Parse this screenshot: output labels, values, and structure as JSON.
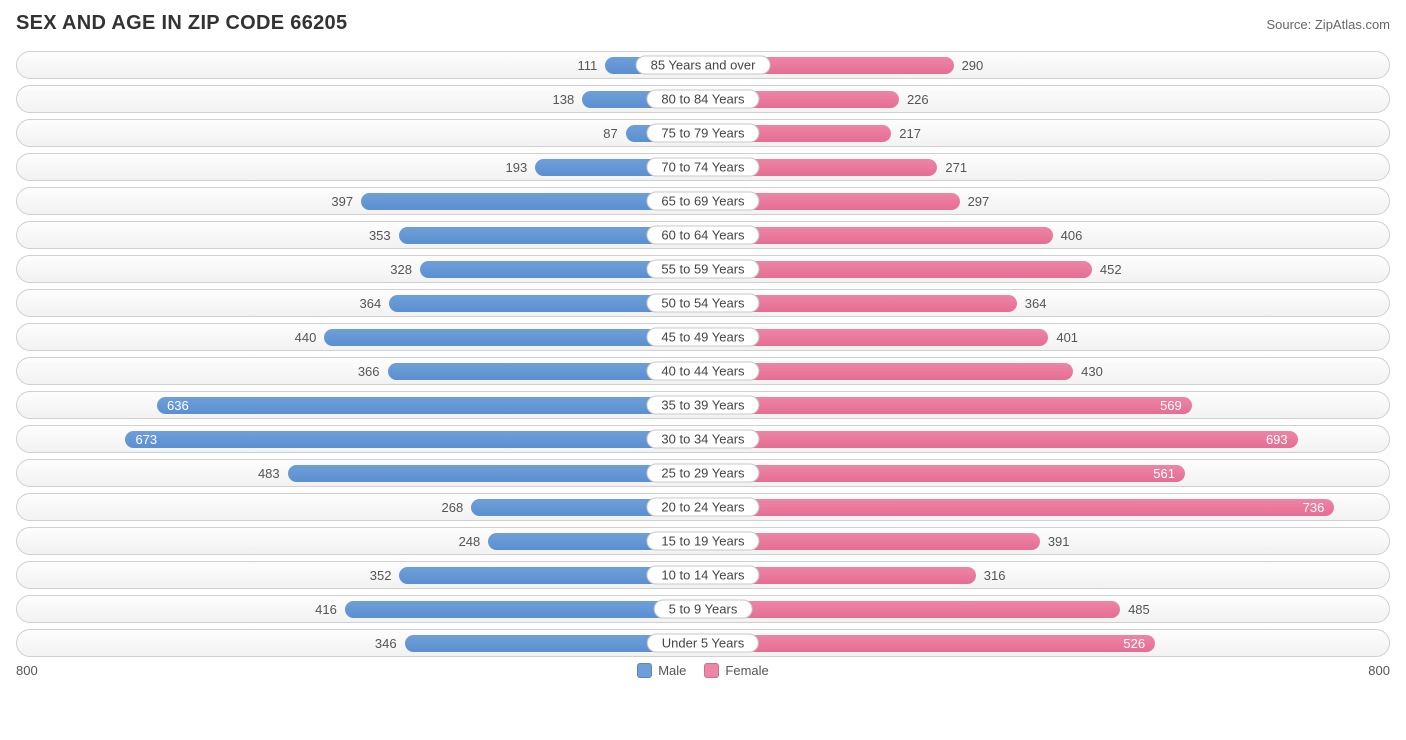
{
  "title": "SEX AND AGE IN ZIP CODE 66205",
  "source": "Source: ZipAtlas.com",
  "axis_max": 800,
  "axis_left_label": "800",
  "axis_right_label": "800",
  "male_color": "#6e9fd9",
  "female_color": "#ed85a6",
  "male_color_dark": "#5b8fd0",
  "female_color_dark": "#e56e93",
  "legend": {
    "male": "Male",
    "female": "Female"
  },
  "inside_threshold": 500,
  "rows": [
    {
      "label": "85 Years and over",
      "male": 111,
      "female": 290
    },
    {
      "label": "80 to 84 Years",
      "male": 138,
      "female": 226
    },
    {
      "label": "75 to 79 Years",
      "male": 87,
      "female": 217
    },
    {
      "label": "70 to 74 Years",
      "male": 193,
      "female": 271
    },
    {
      "label": "65 to 69 Years",
      "male": 397,
      "female": 297
    },
    {
      "label": "60 to 64 Years",
      "male": 353,
      "female": 406
    },
    {
      "label": "55 to 59 Years",
      "male": 328,
      "female": 452
    },
    {
      "label": "50 to 54 Years",
      "male": 364,
      "female": 364
    },
    {
      "label": "45 to 49 Years",
      "male": 440,
      "female": 401
    },
    {
      "label": "40 to 44 Years",
      "male": 366,
      "female": 430
    },
    {
      "label": "35 to 39 Years",
      "male": 636,
      "female": 569
    },
    {
      "label": "30 to 34 Years",
      "male": 673,
      "female": 693
    },
    {
      "label": "25 to 29 Years",
      "male": 483,
      "female": 561
    },
    {
      "label": "20 to 24 Years",
      "male": 268,
      "female": 736
    },
    {
      "label": "15 to 19 Years",
      "male": 248,
      "female": 391
    },
    {
      "label": "10 to 14 Years",
      "male": 352,
      "female": 316
    },
    {
      "label": "5 to 9 Years",
      "male": 416,
      "female": 485
    },
    {
      "label": "Under 5 Years",
      "male": 346,
      "female": 526
    }
  ]
}
